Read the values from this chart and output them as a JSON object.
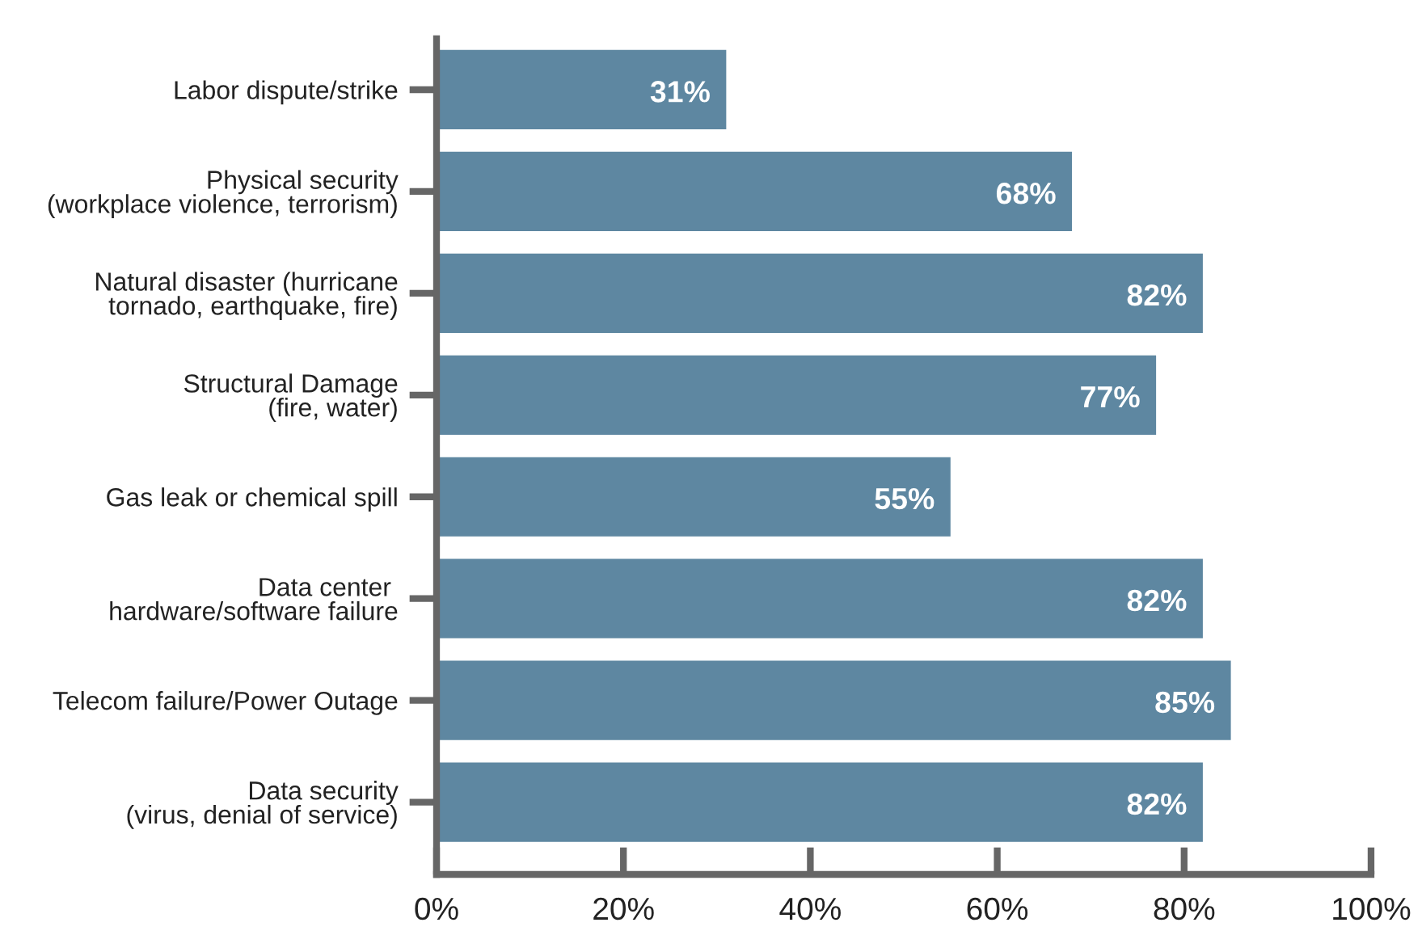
{
  "chart_data": {
    "type": "bar",
    "orientation": "horizontal",
    "categories": [
      "Labor dispute/strike",
      "Physical security\n(workplace violence, terrorism)",
      "Natural disaster (hurricane\ntornado, earthquake, fire)",
      "Structural Damage\n(fire, water)",
      "Gas leak or chemical spill",
      "Data center \nhardware/software failure",
      "Telecom failure/Power Outage",
      "Data security\n(virus, denial of service)"
    ],
    "values": [
      31,
      68,
      82,
      77,
      55,
      82,
      85,
      82
    ],
    "color": "#5e87a1",
    "value_labels": [
      "31%",
      "68%",
      "82%",
      "77%",
      "55%",
      "82%",
      "85%",
      "82%"
    ],
    "xlim": [
      0,
      100
    ],
    "xticks": [
      {
        "value": 0,
        "label": "0%"
      },
      {
        "value": 20,
        "label": "20%"
      },
      {
        "value": 40,
        "label": "40%"
      },
      {
        "value": 60,
        "label": "60%"
      },
      {
        "value": 80,
        "label": "80%"
      },
      {
        "value": 100,
        "label": "100%"
      }
    ],
    "grid": false,
    "legend": false
  }
}
